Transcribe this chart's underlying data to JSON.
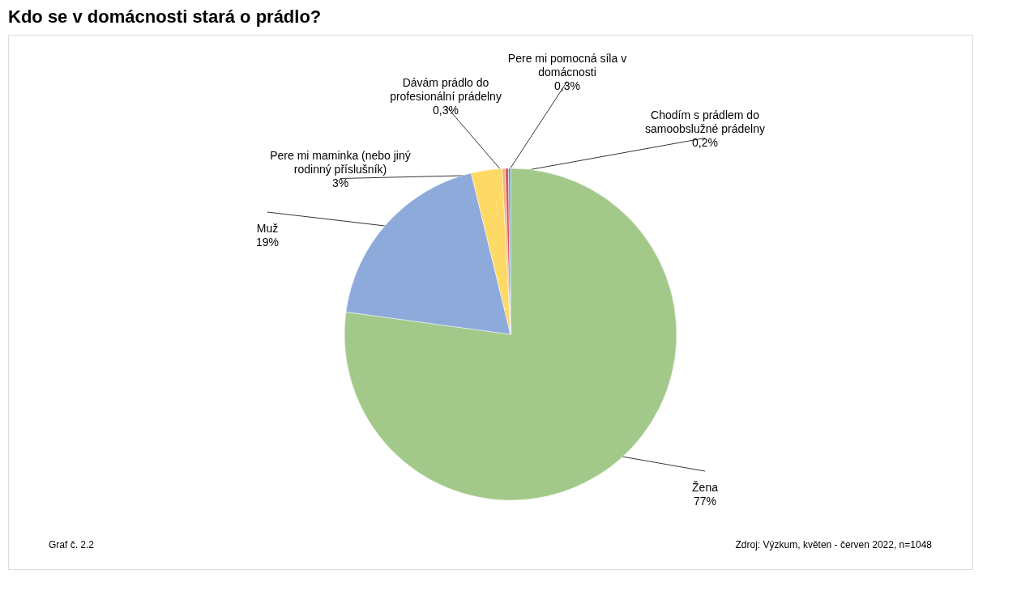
{
  "chart_data": {
    "type": "pie",
    "title": "Kdo se v domácnosti stará o prádlo?",
    "categories": [
      "Žena",
      "Muž",
      "Pere mi maminka (nebo jiný rodinný příslušník)",
      "Dávám prádlo do profesionální prádelny",
      "Pere mi pomocná síla v domácnosti",
      "Chodím s prádlem do samoobslužné prádelny"
    ],
    "values": [
      77,
      19,
      3,
      0.3,
      0.3,
      0.2
    ],
    "value_labels": [
      "77%",
      "19%",
      "3%",
      "0,3%",
      "0,3%",
      "0,2%"
    ],
    "colors": [
      "#a3c98a",
      "#8eaadb",
      "#ffd966",
      "#f4b183",
      "#d9534f",
      "#5b9bd5"
    ],
    "annotations": [
      "Graf č. 2.2",
      "Zdroj: Výzkum, květen - červen 2022, n=1048"
    ]
  }
}
